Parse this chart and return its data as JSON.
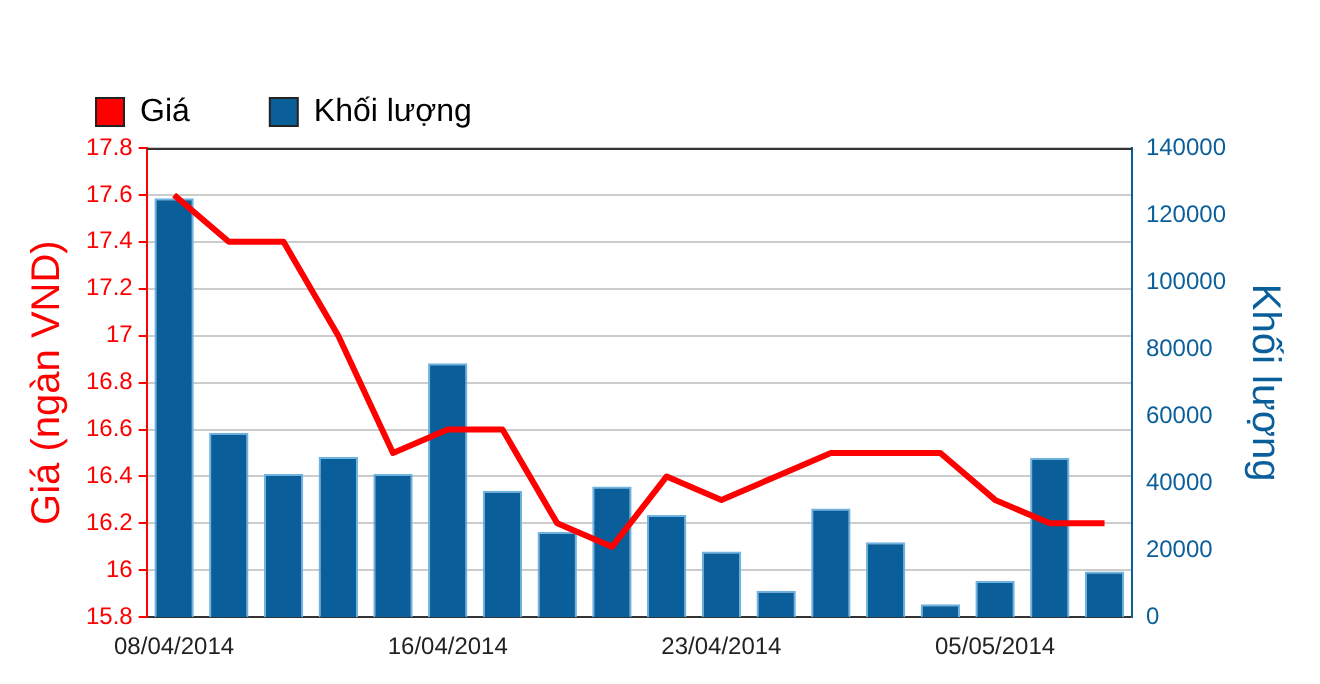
{
  "chart_data": {
    "type": "bar",
    "ylabel": "Giá (ngàn VND)",
    "y2label": "Khối lượng",
    "categories": [
      "08/04/2014",
      null,
      null,
      null,
      null,
      "16/04/2014",
      null,
      null,
      null,
      null,
      "23/04/2014",
      null,
      null,
      null,
      null,
      "05/05/2014",
      null,
      null
    ],
    "series": [
      {
        "name": "Giá",
        "type": "line",
        "color": "#ff0000",
        "axis": "y",
        "values": [
          17.6,
          17.4,
          17.4,
          17.0,
          16.5,
          16.6,
          16.6,
          16.2,
          16.1,
          16.4,
          16.3,
          16.4,
          16.5,
          16.5,
          16.5,
          16.3,
          16.2,
          16.2
        ]
      },
      {
        "name": "Khối lượng",
        "color": "#0a5f9a",
        "axis": "y2",
        "values": [
          125000,
          55000,
          42700,
          47800,
          42700,
          75800,
          37700,
          25400,
          39000,
          30500,
          19600,
          7900,
          32400,
          22400,
          3900,
          10800,
          47600,
          13600
        ]
      }
    ],
    "ylim": [
      15.8,
      17.8
    ],
    "yticks": [
      15.8,
      16,
      16.2,
      16.4,
      16.6,
      16.8,
      17,
      17.2,
      17.4,
      17.6,
      17.8
    ],
    "y2lim": [
      0,
      140000
    ],
    "y2ticks": [
      0,
      20000,
      40000,
      60000,
      80000,
      100000,
      120000,
      140000
    ],
    "grid": "y",
    "legend": "top left",
    "marker": "none",
    "line_style": "solid"
  }
}
